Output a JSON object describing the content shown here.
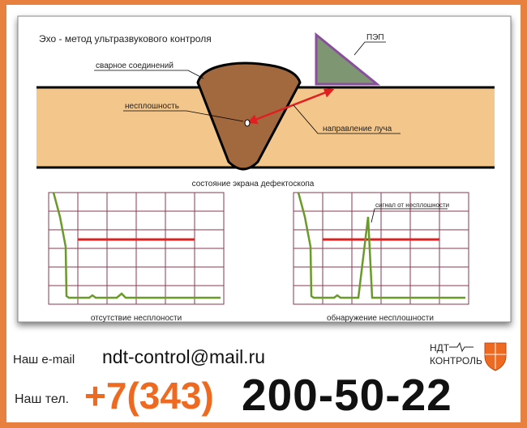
{
  "diagram": {
    "title": "Эхо - метод ультразвукового контроля",
    "labels": {
      "weld": "сварное соединений",
      "defect": "несплошность",
      "probe": "ПЭП",
      "beam": "направление луча",
      "screen_title": "состояние экрана дефектоскопа",
      "signal": "сигнал от несплошности"
    },
    "screens": [
      {
        "caption": "отсутствие несплоности"
      },
      {
        "caption": "обнаружение несплошности"
      }
    ],
    "colors": {
      "metal": "#f3c68c",
      "weld": "#a2683e",
      "probe": "#7f9673",
      "probe_border": "#8a4f9c",
      "beam": "#e02020",
      "trace": "#6a9a2a",
      "threshold": "#e02020",
      "grid": "#8a3a50"
    }
  },
  "contacts": {
    "email_label": "Наш e-mail",
    "email": "ndt-control@mail.ru",
    "tel_label": "Наш тел.",
    "tel_code": "+7(343)",
    "tel_number": "200-50-22"
  },
  "logo": {
    "line1": "НДТ",
    "line2": "КОНТРОЛЬ"
  },
  "colors": {
    "frame": "#e8803f",
    "accent": "#ee6a20"
  }
}
